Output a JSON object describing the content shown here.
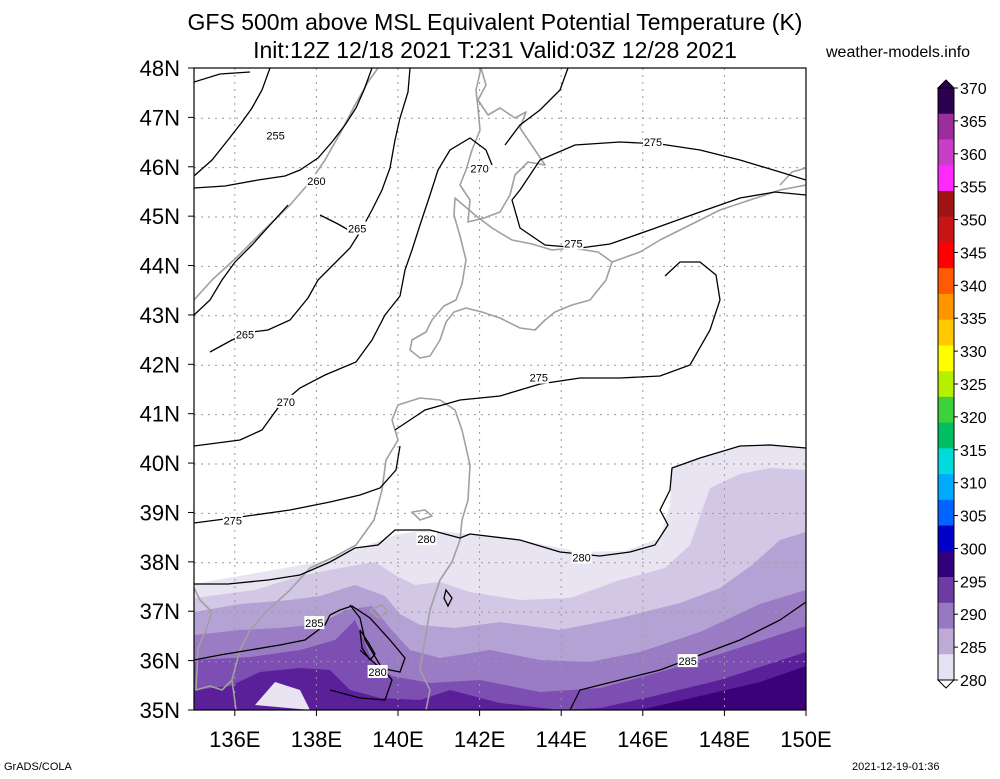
{
  "title": "GFS 500m above MSL Equivalent Potential Temperature (K)",
  "subtitle": "Init:12Z 12/18 2021 T:231 Valid:03Z 12/28 2021",
  "site": "weather-models.info",
  "footer_left": "GrADS/COLA",
  "footer_right": "2021-12-19-01:36",
  "map": {
    "lon_range": [
      135,
      150
    ],
    "lat_range": [
      35,
      48
    ],
    "lat_labels": [
      "35N",
      "36N",
      "37N",
      "38N",
      "39N",
      "40N",
      "41N",
      "42N",
      "43N",
      "44N",
      "45N",
      "46N",
      "47N",
      "48N"
    ],
    "lon_labels": [
      "136E",
      "138E",
      "140E",
      "142E",
      "144E",
      "146E",
      "148E",
      "150E"
    ],
    "lon_ticks": [
      136,
      138,
      140,
      142,
      144,
      146,
      148,
      150
    ],
    "contour_labels": [
      {
        "text": "255",
        "lon": 137.0,
        "lat": 46.63
      },
      {
        "text": "260",
        "lon": 138.0,
        "lat": 45.71
      },
      {
        "text": "265",
        "lon": 139.0,
        "lat": 44.75
      },
      {
        "text": "265",
        "lon": 136.25,
        "lat": 42.6
      },
      {
        "text": "270",
        "lon": 137.25,
        "lat": 41.24
      },
      {
        "text": "270",
        "lon": 142.0,
        "lat": 45.97
      },
      {
        "text": "275",
        "lon": 146.25,
        "lat": 46.5
      },
      {
        "text": "275",
        "lon": 144.3,
        "lat": 44.45
      },
      {
        "text": "275",
        "lon": 143.45,
        "lat": 41.73
      },
      {
        "text": "275",
        "lon": 135.95,
        "lat": 38.84
      },
      {
        "text": "280",
        "lon": 140.7,
        "lat": 38.46
      },
      {
        "text": "280",
        "lon": 144.5,
        "lat": 38.09
      },
      {
        "text": "280",
        "lon": 139.5,
        "lat": 35.77
      },
      {
        "text": "285",
        "lon": 137.95,
        "lat": 36.76
      },
      {
        "text": "285",
        "lon": 147.1,
        "lat": 35.99
      }
    ]
  },
  "colorbar": {
    "values": [
      "370",
      "365",
      "360",
      "355",
      "350",
      "345",
      "340",
      "335",
      "330",
      "325",
      "320",
      "315",
      "310",
      "305",
      "300",
      "295",
      "290",
      "285",
      "280"
    ],
    "colors": [
      "#2b0050",
      "#9b2c9b",
      "#c83ec8",
      "#ff28ff",
      "#a01414",
      "#c81414",
      "#ff0000",
      "#ff5a00",
      "#ff9600",
      "#ffc800",
      "#ffff00",
      "#b4f000",
      "#3cd23c",
      "#00be64",
      "#00dcdc",
      "#00aaff",
      "#0064ff",
      "#0000c8",
      "#32007d",
      "#6e3ca0",
      "#9678c3",
      "#beaad7",
      "#e6e1f0",
      "#ffffff"
    ]
  },
  "thetae_shading": [
    {
      "level": "280-282",
      "color": "#e8e4f2"
    },
    {
      "level": "282-284",
      "color": "#d2c8e6"
    },
    {
      "level": "284-286",
      "color": "#b4a2d4"
    },
    {
      "level": "286-288",
      "color": "#9a7cc4"
    },
    {
      "level": "288-290",
      "color": "#7d4fb2"
    },
    {
      "level": "290-292",
      "color": "#5c1f9a"
    },
    {
      "level": "292+",
      "color": "#3c0078"
    }
  ]
}
